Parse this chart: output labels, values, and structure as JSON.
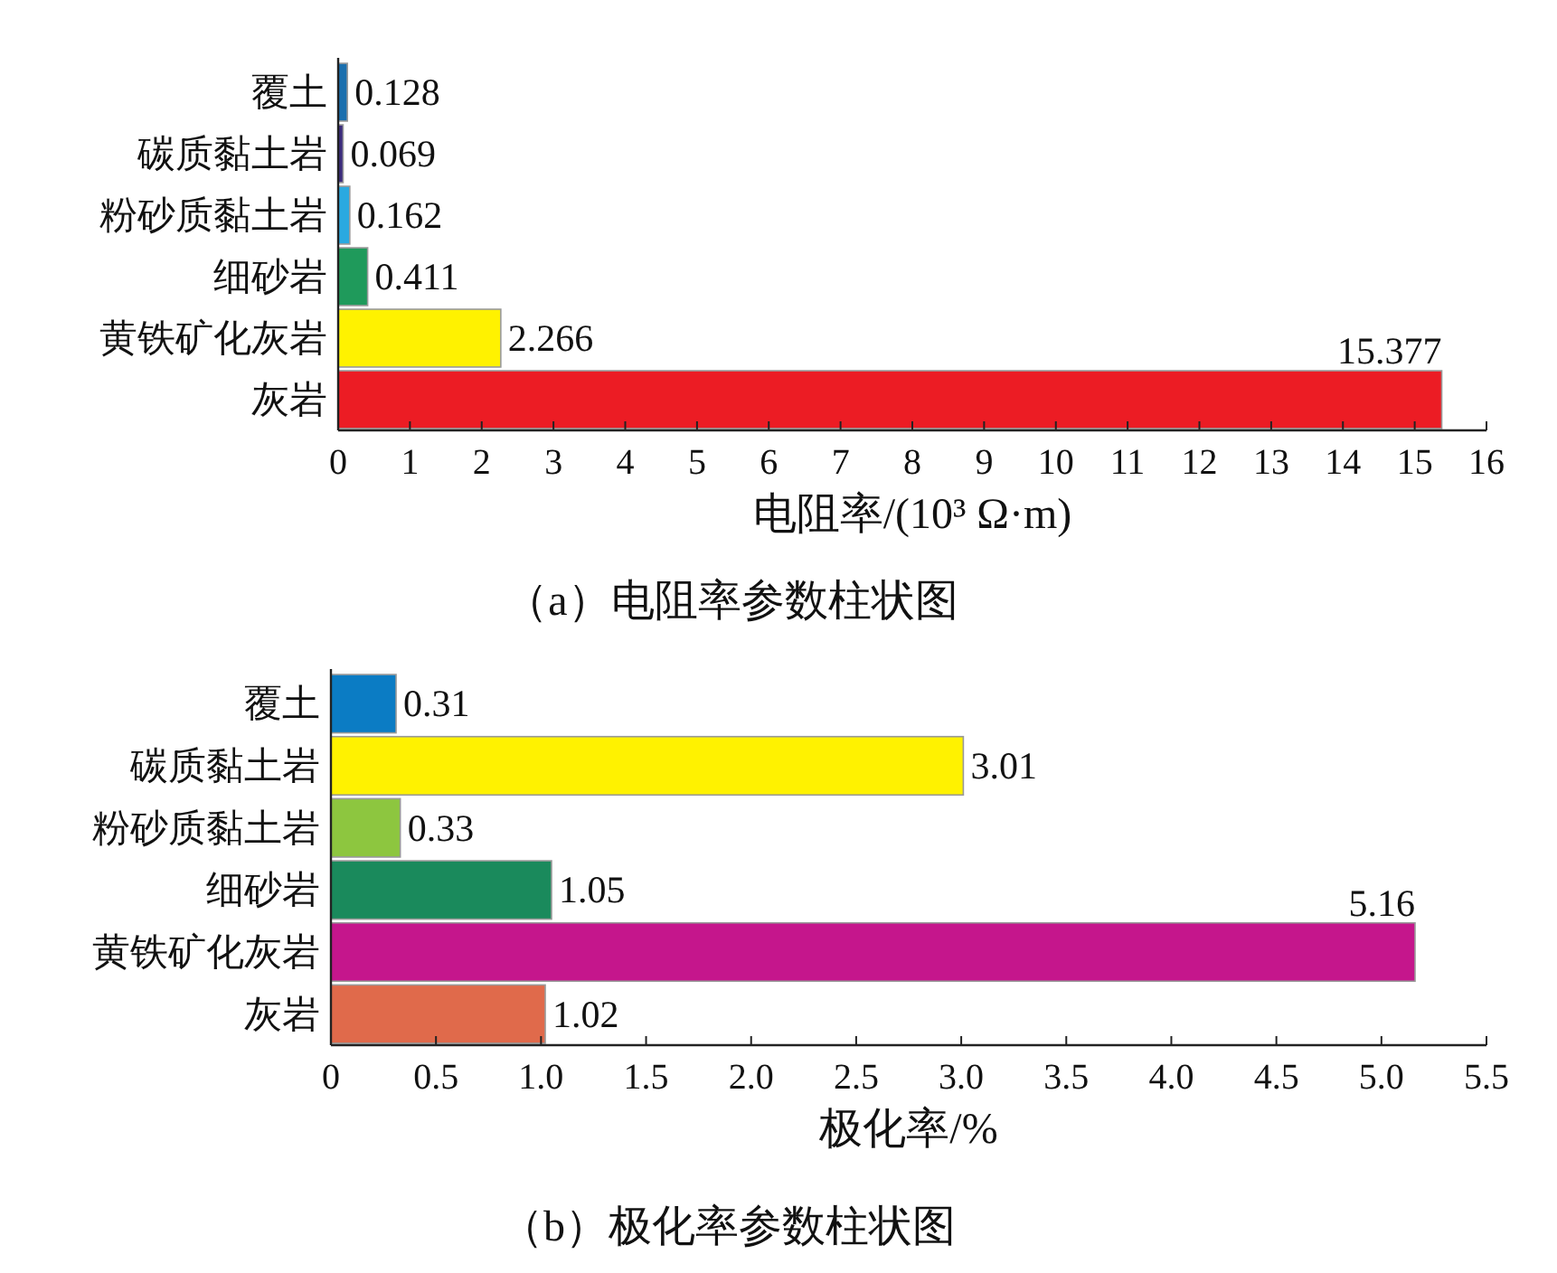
{
  "chart_data": [
    {
      "type": "bar",
      "orientation": "horizontal",
      "title": "（a）电阻率参数柱状图",
      "xlabel": "电阻率/(10³ Ω·m)",
      "categories": [
        "覆土",
        "碳质黏土岩",
        "粉砂质黏土岩",
        "细砂岩",
        "黄铁矿化灰岩",
        "灰岩"
      ],
      "values": [
        0.128,
        0.069,
        0.162,
        0.411,
        2.266,
        15.377
      ],
      "colors": [
        "#1b6fae",
        "#3b2c7c",
        "#2aa9e0",
        "#1f9a5b",
        "#fff200",
        "#ec1c24"
      ],
      "xlim": [
        0,
        16
      ],
      "xticks": [
        0,
        1,
        2,
        3,
        4,
        5,
        6,
        7,
        8,
        9,
        10,
        11,
        12,
        13,
        14,
        15,
        16
      ],
      "data_labels": true,
      "grid": false
    },
    {
      "type": "bar",
      "orientation": "horizontal",
      "title": "（b）极化率参数柱状图",
      "xlabel": "极化率/%",
      "categories": [
        "覆土",
        "碳质黏土岩",
        "粉砂质黏土岩",
        "细砂岩",
        "黄铁矿化灰岩",
        "灰岩"
      ],
      "values": [
        0.31,
        3.01,
        0.33,
        1.05,
        5.16,
        1.02
      ],
      "colors": [
        "#0b7cc4",
        "#fff200",
        "#8dc63f",
        "#1a8a5c",
        "#c5168c",
        "#e06a4b"
      ],
      "xlim": [
        0,
        5.5
      ],
      "xticks": [
        0,
        0.5,
        {
          "value": 1,
          "label": "1.0"
        },
        1.5,
        {
          "value": 2,
          "label": "2.0"
        },
        2.5,
        {
          "value": 3,
          "label": "3.0"
        },
        3.5,
        {
          "value": 4,
          "label": "4.0"
        },
        4.5,
        {
          "value": 5,
          "label": "5.0"
        },
        5.5
      ],
      "data_labels": true,
      "grid": false
    }
  ]
}
